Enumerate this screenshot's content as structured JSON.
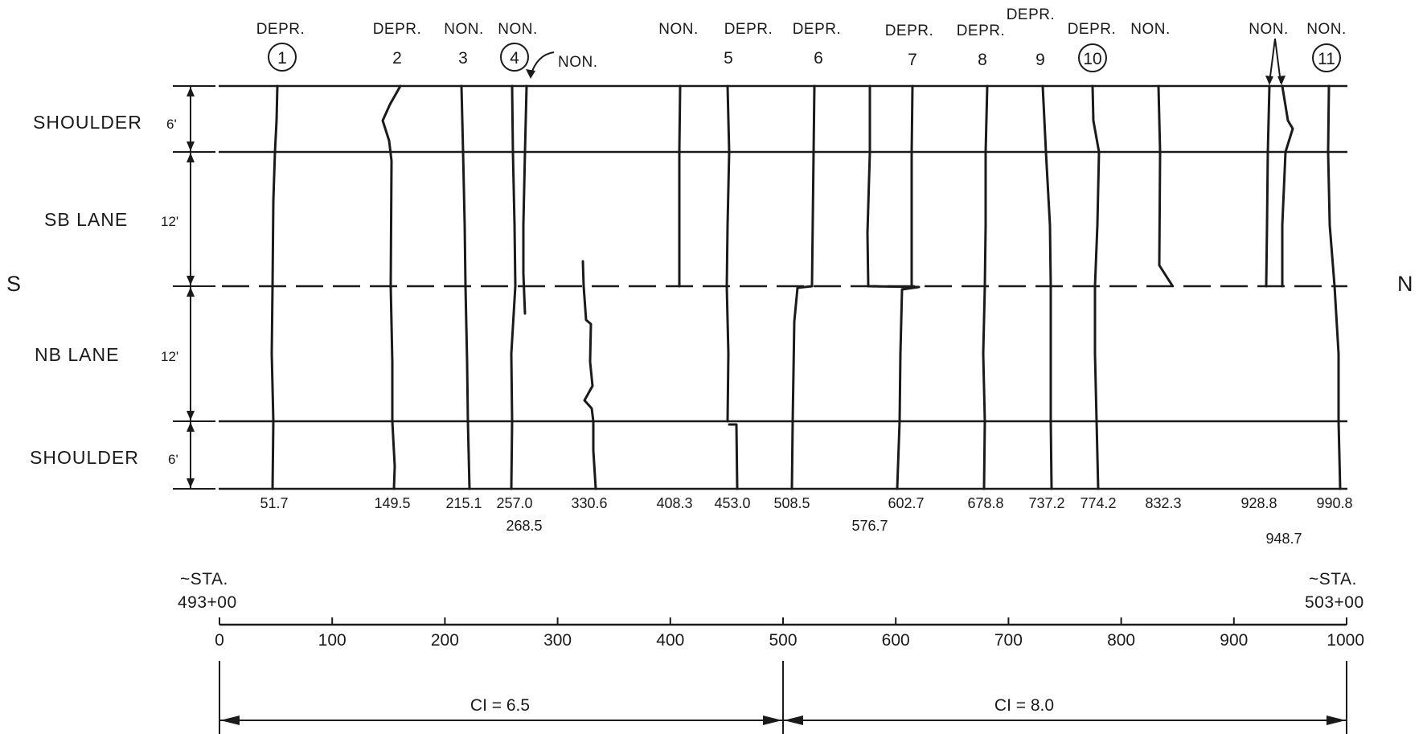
{
  "directions": {
    "left": "S",
    "right": "N"
  },
  "rows": [
    {
      "label": "SHOULDER",
      "width": "6'"
    },
    {
      "label": "SB LANE",
      "width": "12'"
    },
    {
      "label": "NB LANE",
      "width": "12'"
    },
    {
      "label": "SHOULDER",
      "width": "6'"
    }
  ],
  "crack_labels": [
    {
      "type": "DEPR.",
      "number": "1",
      "circled": true
    },
    {
      "type": "DEPR.",
      "number": "2",
      "circled": false
    },
    {
      "type": "NON.",
      "number": "3",
      "circled": false
    },
    {
      "type": "NON.",
      "number": "4",
      "circled": true
    },
    {
      "type": "NON.",
      "number": "",
      "circled": false
    },
    {
      "type": "NON.",
      "number": "",
      "circled": false
    },
    {
      "type": "DEPR.",
      "number": "5",
      "circled": false
    },
    {
      "type": "DEPR.",
      "number": "6",
      "circled": false
    },
    {
      "type": "DEPR.",
      "number": "7",
      "circled": false
    },
    {
      "type": "DEPR.",
      "number": "8",
      "circled": false
    },
    {
      "type": "DEPR.",
      "number": "9",
      "circled": false
    },
    {
      "type": "DEPR.",
      "number": "10",
      "circled": true
    },
    {
      "type": "NON.",
      "number": "",
      "circled": false
    },
    {
      "type": "NON.",
      "number": "",
      "circled": false
    },
    {
      "type": "NON.",
      "number": "11",
      "circled": true
    }
  ],
  "stations": [
    "51.7",
    "149.5",
    "215.1",
    "257.0",
    "268.5",
    "330.6",
    "408.3",
    "453.0",
    "508.5",
    "576.7",
    "602.7",
    "678.8",
    "737.2",
    "774.2",
    "832.3",
    "928.8",
    "948.7",
    "990.8"
  ],
  "scale": {
    "ticks": [
      "0",
      "100",
      "200",
      "300",
      "400",
      "500",
      "600",
      "700",
      "800",
      "900",
      "1000"
    ],
    "start_label": [
      "~STA.",
      "493+00"
    ],
    "end_label": [
      "~STA.",
      "503+00"
    ]
  },
  "ci": [
    {
      "label": "CI  =  6.5",
      "from": 0,
      "to": 500
    },
    {
      "label": "CI  =  8.0",
      "from": 500,
      "to": 1000
    }
  ],
  "colors": {
    "ink": "#1a1a1a",
    "background": "#ffffff"
  }
}
